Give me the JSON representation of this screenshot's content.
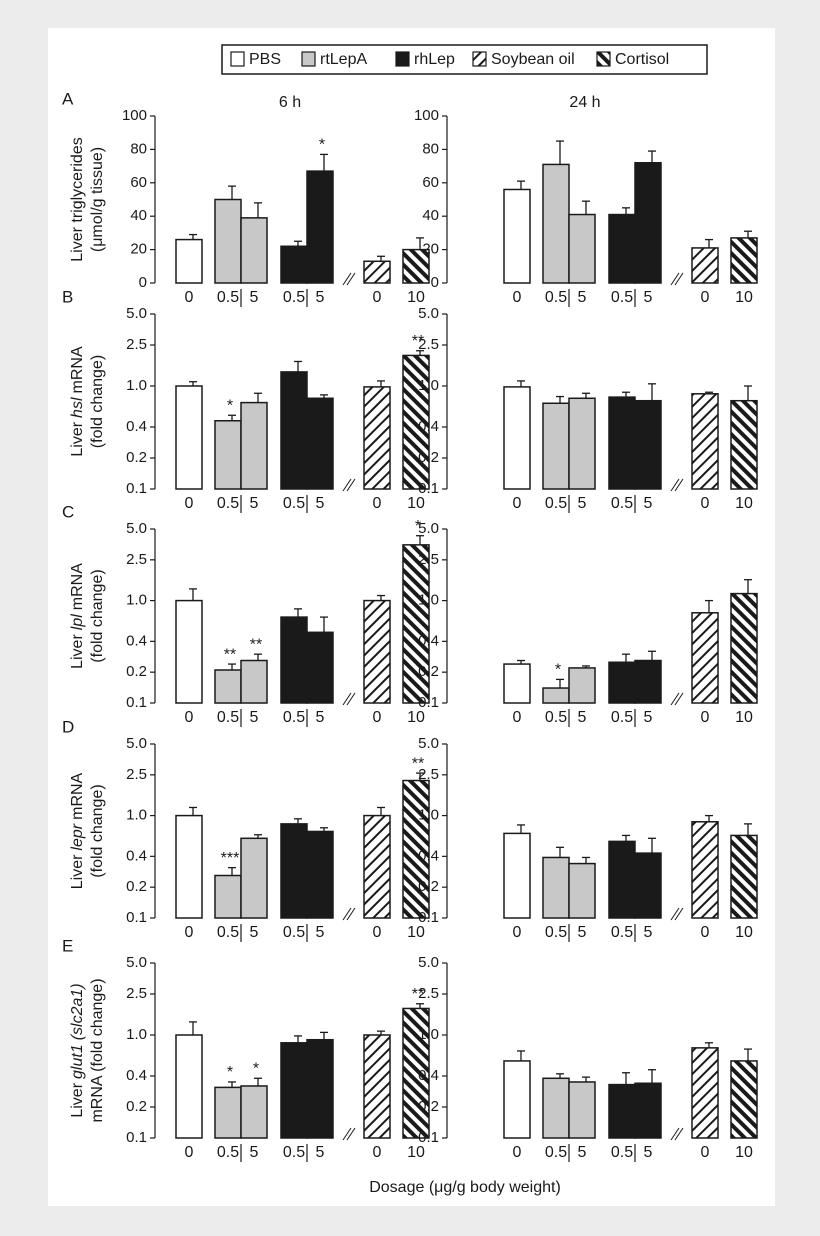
{
  "legend": [
    {
      "name": "PBS",
      "fill": "#ffffff"
    },
    {
      "name": "rtLepA",
      "fill": "#c8c8c8"
    },
    {
      "name": "rhLep",
      "fill": "#1a1a1a"
    },
    {
      "name": "Soybean oil",
      "fill": "hatch-forward"
    },
    {
      "name": "Cortisol",
      "fill": "hatch-back"
    }
  ],
  "x_label": "Dosage (μg/g body weight)",
  "chart_data": [
    {
      "type": "bar",
      "panel": "A",
      "title": "6 h",
      "y_label": [
        [
          "Liver triglycerides"
        ],
        [
          "(μmol/g tissue)"
        ]
      ],
      "y_label_italic": [],
      "categories": [
        "0",
        "0.5",
        "5",
        "0.5",
        "5",
        "0",
        "10"
      ],
      "groups": [
        0,
        1,
        1,
        2,
        2,
        3,
        4
      ],
      "values": [
        26,
        50,
        39,
        22,
        67,
        13,
        20
      ],
      "errors": [
        3,
        8,
        9,
        3,
        10,
        3,
        7
      ],
      "annotations": [
        null,
        null,
        null,
        null,
        "*",
        null,
        null
      ],
      "ylim": [
        0,
        100
      ],
      "yticks": [
        0,
        20,
        40,
        60,
        80,
        100
      ],
      "log_scale": false
    },
    {
      "type": "bar",
      "title": "24 h",
      "categories": [
        "0",
        "0.5",
        "5",
        "0.5",
        "5",
        "0",
        "10"
      ],
      "groups": [
        0,
        1,
        1,
        2,
        2,
        3,
        4
      ],
      "values": [
        56,
        71,
        41,
        41,
        72,
        21,
        27
      ],
      "errors": [
        5,
        14,
        8,
        4,
        7,
        5,
        4
      ],
      "annotations": [
        null,
        null,
        null,
        null,
        null,
        null,
        null
      ],
      "ylim": [
        0,
        100
      ],
      "yticks": [
        0,
        20,
        40,
        60,
        80,
        100
      ],
      "log_scale": false
    },
    {
      "type": "bar",
      "panel": "B",
      "y_label": [
        [
          "Liver",
          "hsl",
          "mRNA"
        ],
        [
          "(fold change)"
        ]
      ],
      "y_label_italic": [
        1
      ],
      "categories": [
        "0",
        "0.5",
        "5",
        "0.5",
        "5",
        "0",
        "10"
      ],
      "groups": [
        0,
        1,
        1,
        2,
        2,
        3,
        4
      ],
      "values": [
        1.0,
        0.46,
        0.69,
        1.37,
        0.76,
        0.98,
        1.98
      ],
      "errors": [
        0.1,
        0.06,
        0.16,
        0.36,
        0.06,
        0.14,
        0.22
      ],
      "annotations": [
        null,
        "*",
        null,
        null,
        null,
        null,
        "**"
      ],
      "ylim": [
        0.1,
        5
      ],
      "yticks": [
        0.1,
        0.2,
        0.4,
        {
          "value": 1,
          "label": "1.0"
        },
        2.5,
        {
          "value": 5,
          "label": "5.0"
        }
      ],
      "log_scale": true
    },
    {
      "type": "bar",
      "categories": [
        "0",
        "0.5",
        "5",
        "0.5",
        "5",
        "0",
        "10"
      ],
      "groups": [
        0,
        1,
        1,
        2,
        2,
        3,
        4
      ],
      "values": [
        0.98,
        0.68,
        0.76,
        0.78,
        0.72,
        0.84,
        0.72
      ],
      "errors": [
        0.14,
        0.11,
        0.09,
        0.09,
        0.33,
        0.03,
        0.28
      ],
      "annotations": [
        null,
        null,
        null,
        null,
        null,
        null,
        null
      ],
      "ylim": [
        0.1,
        5
      ],
      "yticks": [
        0.1,
        0.2,
        0.4,
        {
          "value": 1,
          "label": "1.0"
        },
        2.5,
        {
          "value": 5,
          "label": "5.0"
        }
      ],
      "log_scale": true
    },
    {
      "type": "bar",
      "panel": "C",
      "y_label": [
        [
          "Liver",
          "lpl",
          "mRNA"
        ],
        [
          "(fold change)"
        ]
      ],
      "y_label_italic": [
        1
      ],
      "categories": [
        "0",
        "0.5",
        "5",
        "0.5",
        "5",
        "0",
        "10"
      ],
      "groups": [
        0,
        1,
        1,
        2,
        2,
        3,
        4
      ],
      "values": [
        1.0,
        0.21,
        0.26,
        0.69,
        0.49,
        1.0,
        3.5
      ],
      "errors": [
        0.3,
        0.03,
        0.04,
        0.14,
        0.2,
        0.12,
        0.8
      ],
      "annotations": [
        null,
        "**",
        "**",
        null,
        null,
        null,
        "*"
      ],
      "ylim": [
        0.1,
        5
      ],
      "yticks": [
        0.1,
        0.2,
        0.4,
        {
          "value": 1,
          "label": "1.0"
        },
        2.5,
        {
          "value": 5,
          "label": "5.0"
        }
      ],
      "log_scale": true
    },
    {
      "type": "bar",
      "categories": [
        "0",
        "0.5",
        "5",
        "0.5",
        "5",
        "0",
        "10"
      ],
      "groups": [
        0,
        1,
        1,
        2,
        2,
        3,
        4
      ],
      "values": [
        0.24,
        0.14,
        0.22,
        0.25,
        0.26,
        0.76,
        1.17
      ],
      "errors": [
        0.02,
        0.03,
        0.01,
        0.05,
        0.06,
        0.24,
        0.43
      ],
      "annotations": [
        null,
        "*",
        null,
        null,
        null,
        null,
        null
      ],
      "ylim": [
        0.1,
        5
      ],
      "yticks": [
        0.1,
        0.2,
        0.4,
        {
          "value": 1,
          "label": "1.0"
        },
        2.5,
        {
          "value": 5,
          "label": "5.0"
        }
      ],
      "log_scale": true
    },
    {
      "type": "bar",
      "panel": "D",
      "y_label": [
        [
          "Liver",
          "lepr",
          "mRNA"
        ],
        [
          "(fold change)"
        ]
      ],
      "y_label_italic": [
        1
      ],
      "categories": [
        "0",
        "0.5",
        "5",
        "0.5",
        "5",
        "0",
        "10"
      ],
      "groups": [
        0,
        1,
        1,
        2,
        2,
        3,
        4
      ],
      "values": [
        1.0,
        0.26,
        0.6,
        0.83,
        0.7,
        1.0,
        2.2
      ],
      "errors": [
        0.2,
        0.05,
        0.05,
        0.1,
        0.06,
        0.2,
        0.4
      ],
      "annotations": [
        null,
        "***",
        null,
        null,
        null,
        null,
        "**"
      ],
      "ylim": [
        0.1,
        5
      ],
      "yticks": [
        0.1,
        0.2,
        0.4,
        {
          "value": 1,
          "label": "1.0"
        },
        2.5,
        {
          "value": 5,
          "label": "5.0"
        }
      ],
      "log_scale": true
    },
    {
      "type": "bar",
      "categories": [
        "0",
        "0.5",
        "5",
        "0.5",
        "5",
        "0",
        "10"
      ],
      "groups": [
        0,
        1,
        1,
        2,
        2,
        3,
        4
      ],
      "values": [
        0.67,
        0.39,
        0.34,
        0.56,
        0.43,
        0.87,
        0.64
      ],
      "errors": [
        0.14,
        0.1,
        0.05,
        0.08,
        0.17,
        0.13,
        0.19
      ],
      "annotations": [
        null,
        null,
        null,
        null,
        null,
        null,
        null
      ],
      "ylim": [
        0.1,
        5
      ],
      "yticks": [
        0.1,
        0.2,
        0.4,
        {
          "value": 1,
          "label": "1.0"
        },
        2.5,
        {
          "value": 5,
          "label": "5.0"
        }
      ],
      "log_scale": true
    },
    {
      "type": "bar",
      "panel": "E",
      "y_label": [
        [
          "Liver",
          "glut1",
          "(slc2a1)"
        ],
        [
          "mRNA (fold change)"
        ]
      ],
      "y_label_italic": [
        1,
        2
      ],
      "categories": [
        "0",
        "0.5",
        "5",
        "0.5",
        "5",
        "0",
        "10"
      ],
      "groups": [
        0,
        1,
        1,
        2,
        2,
        3,
        4
      ],
      "values": [
        1.0,
        0.31,
        0.32,
        0.84,
        0.9,
        1.0,
        1.81
      ],
      "errors": [
        0.34,
        0.04,
        0.06,
        0.14,
        0.16,
        0.09,
        0.2
      ],
      "annotations": [
        null,
        "*",
        "*",
        null,
        null,
        null,
        "**"
      ],
      "ylim": [
        0.1,
        5
      ],
      "yticks": [
        0.1,
        0.2,
        0.4,
        {
          "value": 1,
          "label": "1.0"
        },
        2.5,
        {
          "value": 5,
          "label": "5.0"
        }
      ],
      "log_scale": true
    },
    {
      "type": "bar",
      "categories": [
        "0",
        "0.5",
        "5",
        "0.5",
        "5",
        "0",
        "10"
      ],
      "groups": [
        0,
        1,
        1,
        2,
        2,
        3,
        4
      ],
      "values": [
        0.56,
        0.38,
        0.35,
        0.33,
        0.34,
        0.75,
        0.56
      ],
      "errors": [
        0.14,
        0.04,
        0.04,
        0.1,
        0.12,
        0.09,
        0.17
      ],
      "annotations": [
        null,
        null,
        null,
        null,
        null,
        null,
        null
      ],
      "ylim": [
        0.1,
        5
      ],
      "yticks": [
        0.1,
        0.2,
        0.4,
        {
          "value": 1,
          "label": "1.0"
        },
        2.5,
        {
          "value": 5,
          "label": "5.0"
        }
      ],
      "log_scale": true
    }
  ]
}
